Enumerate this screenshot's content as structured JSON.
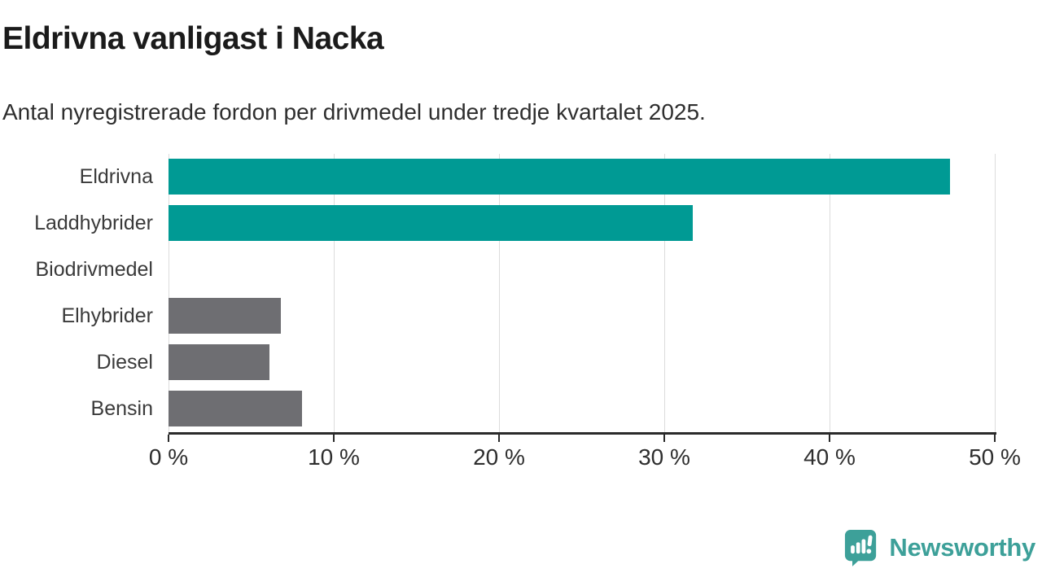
{
  "header": {
    "title": "Eldrivna vanligast i Nacka",
    "subtitle": "Antal nyregistrerade fordon per drivmedel under tredje kvartalet 2025."
  },
  "chart_data": {
    "type": "bar",
    "orientation": "horizontal",
    "title": "Eldrivna vanligast i Nacka",
    "subtitle": "Antal nyregistrerade fordon per drivmedel under tredje kvartalet 2025.",
    "categories": [
      "Eldrivna",
      "Laddhybrider",
      "Biodrivmedel",
      "Elhybrider",
      "Diesel",
      "Bensin"
    ],
    "values": [
      47.3,
      31.7,
      0,
      6.8,
      6.1,
      8.1
    ],
    "unit": "%",
    "xlim": [
      0,
      50
    ],
    "tick_values": [
      0,
      10,
      20,
      30,
      40,
      50
    ],
    "tick_labels": [
      "0 %",
      "10 %",
      "20 %",
      "30 %",
      "40 %",
      "50 %"
    ],
    "grid": "vertical-gridlines-on",
    "legend": "none",
    "highlight_color": "#009A94",
    "default_color": "#6E6E72",
    "bar_colors": [
      "#009A94",
      "#009A94",
      "#6E6E72",
      "#6E6E72",
      "#6E6E72",
      "#6E6E72"
    ],
    "gridline_color": "#DCDCDC",
    "axis_color": "#2A2A2A"
  },
  "branding": {
    "logo_text": "Newsworthy",
    "logo_color": "#3DA099",
    "logo_icon": "newsworthy-speech-bubble-chart-icon"
  }
}
